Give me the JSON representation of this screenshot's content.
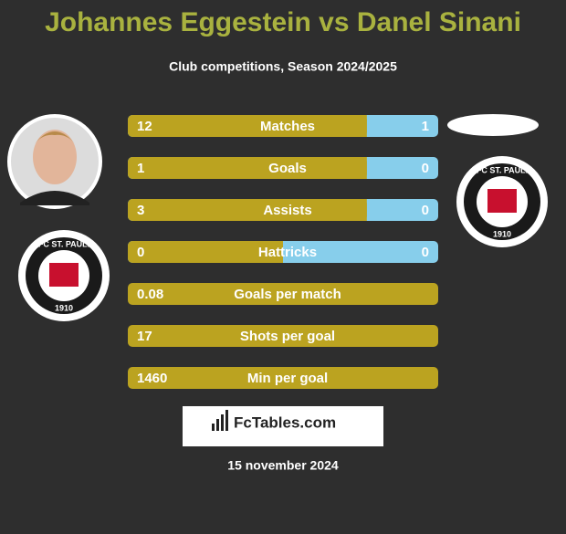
{
  "header": {
    "title": "Johannes Eggestein vs Danel Sinani",
    "subtitle": "Club competitions, Season 2024/2025"
  },
  "club": {
    "name": "FC ST. PAULI",
    "year": "1910"
  },
  "rows": [
    {
      "label": "Matches",
      "left": 12,
      "right": 1
    },
    {
      "label": "Goals",
      "left": 1,
      "right": 0
    },
    {
      "label": "Assists",
      "left": 3,
      "right": 0
    },
    {
      "label": "Hattricks",
      "left": 0,
      "right": 0
    },
    {
      "label": "Goals per match",
      "left": 0.08
    },
    {
      "label": "Shots per goal",
      "left": 17
    },
    {
      "label": "Min per goal",
      "left": 1460
    }
  ],
  "footer": {
    "brand": "FcTables.com",
    "date": "15 november 2024"
  }
}
